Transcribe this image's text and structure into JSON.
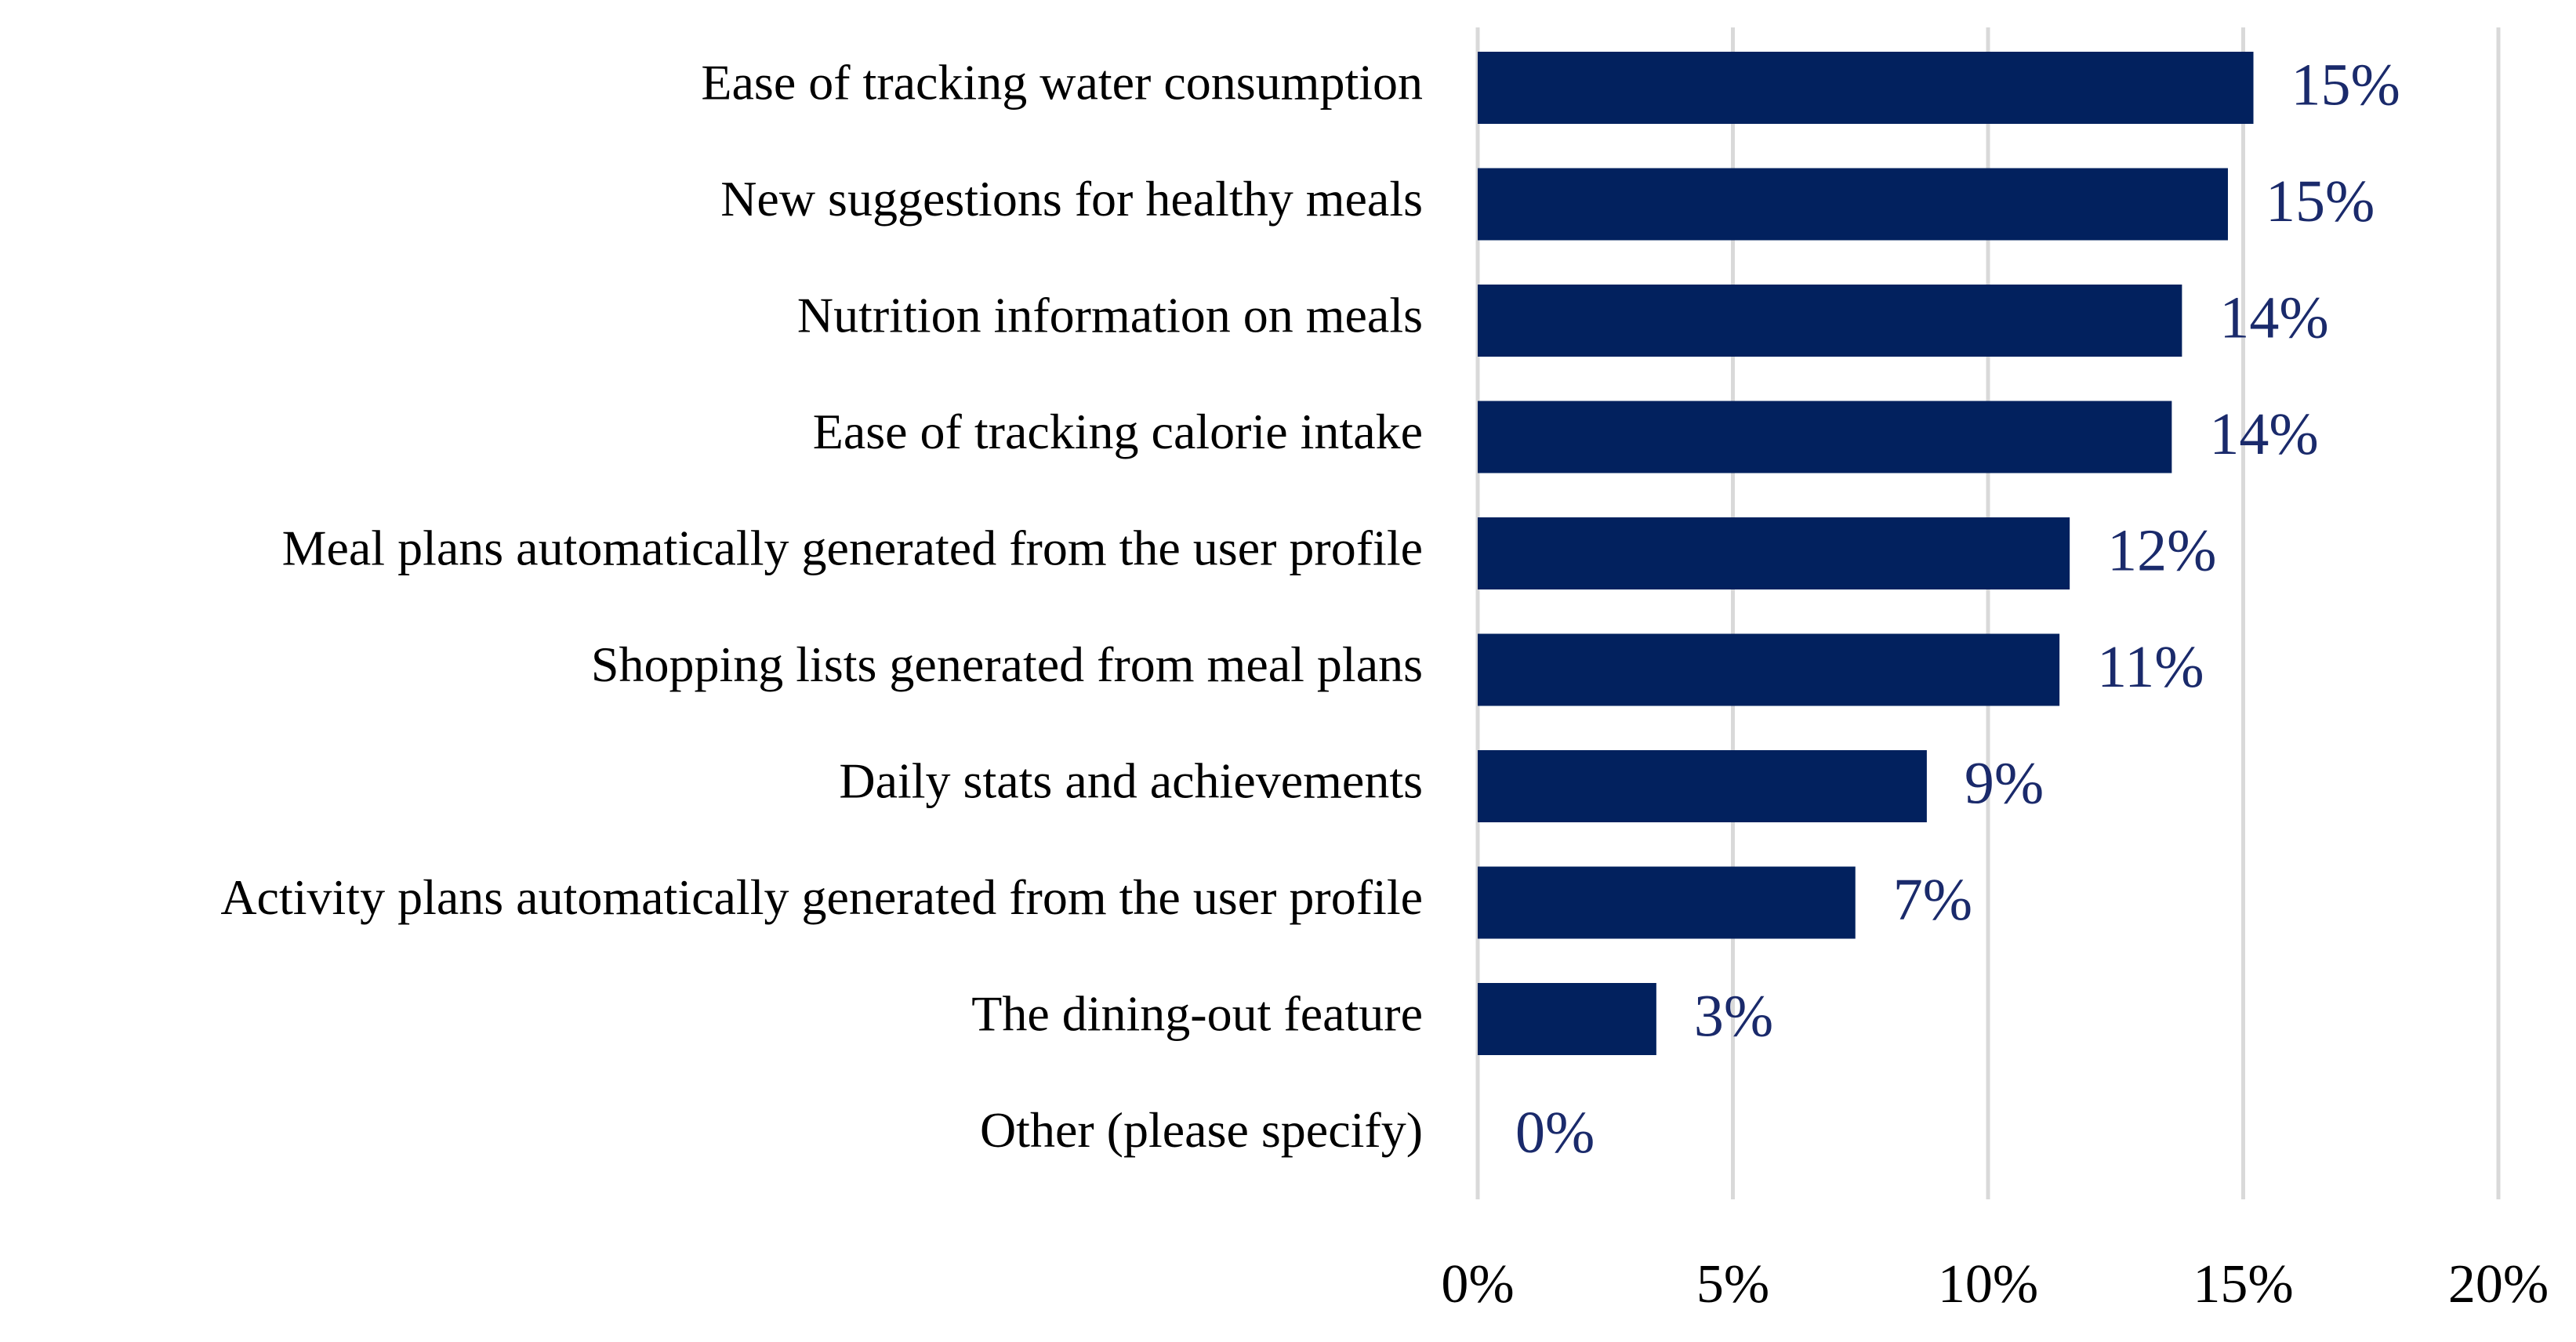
{
  "chart_data": {
    "type": "bar",
    "orientation": "horizontal",
    "title": "",
    "xlabel": "",
    "ylabel": "",
    "categories": [
      "Ease of tracking water consumption",
      "New suggestions for healthy meals",
      "Nutrition information on meals",
      "Ease of tracking calorie intake",
      "Meal plans automatically generated from the user profile",
      "Shopping lists generated from meal plans",
      "Daily stats and achievements",
      "Activity plans automatically generated from the user profile",
      "The dining-out feature",
      "Other (please specify)"
    ],
    "values": [
      15.2,
      14.7,
      13.8,
      13.6,
      11.6,
      11.4,
      8.8,
      7.4,
      3.5,
      0
    ],
    "data_labels": [
      "15%",
      "15%",
      "14%",
      "14%",
      "12%",
      "11%",
      "9%",
      "7%",
      "3%",
      "0%"
    ],
    "xlim": [
      0,
      20
    ],
    "x_ticks": [
      0,
      5,
      10,
      15,
      20
    ],
    "x_tick_labels": [
      "0%",
      "5%",
      "10%",
      "15%",
      "20%"
    ],
    "grid": "vertical",
    "legend": "none",
    "colors": {
      "bar": "#02215e",
      "data_label": "#1a2a6b",
      "grid": "#d9d9d9",
      "text": "#000000"
    }
  }
}
